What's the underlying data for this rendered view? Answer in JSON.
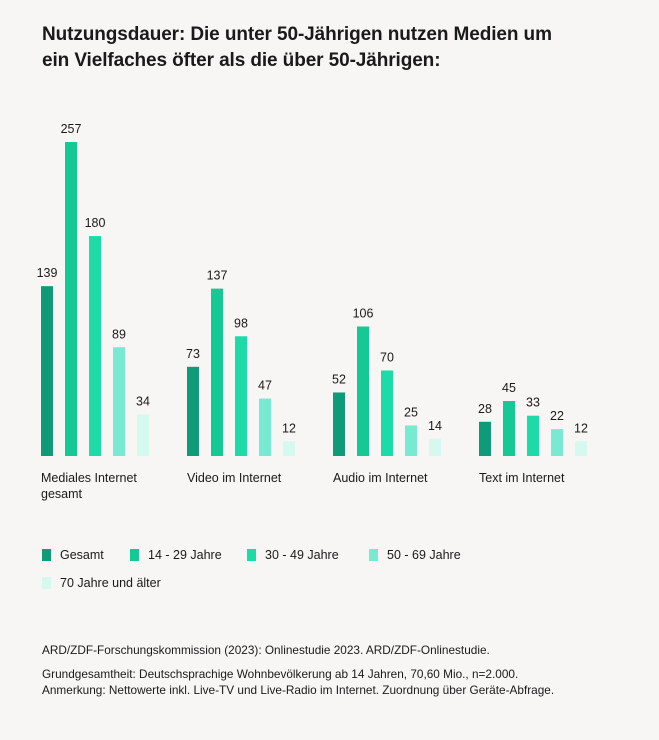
{
  "title_lines": [
    "Nutzungsdauer: Die unter 50-Jährigen nutzen Medien um",
    "ein Vielfaches öfter als die über 50-Jährigen:"
  ],
  "chart_data": {
    "type": "bar",
    "title": "Nutzungsdauer: Die unter 50-Jährigen nutzen Medien um ein Vielfaches öfter als die über 50-Jährigen:",
    "categories": [
      [
        "Mediales Internet",
        "gesamt"
      ],
      [
        "Video im Internet"
      ],
      [
        "Audio im Internet"
      ],
      [
        "Text im Internet"
      ]
    ],
    "series": [
      {
        "name": "Gesamt",
        "color": "#0f9b78",
        "values": [
          139,
          73,
          52,
          28
        ]
      },
      {
        "name": "14 - 29 Jahre",
        "color": "#15c994",
        "values": [
          257,
          137,
          106,
          45
        ]
      },
      {
        "name": "30 - 49 Jahre",
        "color": "#1ddba6",
        "values": [
          180,
          98,
          70,
          33
        ]
      },
      {
        "name": "50 - 69 Jahre",
        "color": "#77ead1",
        "values": [
          89,
          47,
          25,
          22
        ]
      },
      {
        "name": "70 Jahre und älter",
        "color": "#d6f9ef",
        "values": [
          34,
          12,
          14,
          12
        ]
      }
    ],
    "xlabel": "",
    "ylabel": "",
    "ylim": [
      0,
      257
    ],
    "grid": false,
    "legend_position": "bottom"
  },
  "footer": {
    "source": "ARD/ZDF-Forschungskommission (2023): Onlinestudie 2023. ARD/ZDF-Onlinestudie.",
    "base": "Grundgesamtheit: Deutschsprachige Wohnbevölkerung ab 14 Jahren, 70,60 Mio., n=2.000.",
    "note": "Anmerkung: Nettowerte inkl. Live-TV und Live-Radio im Internet. Zuordnung über Geräte-Abfrage."
  }
}
